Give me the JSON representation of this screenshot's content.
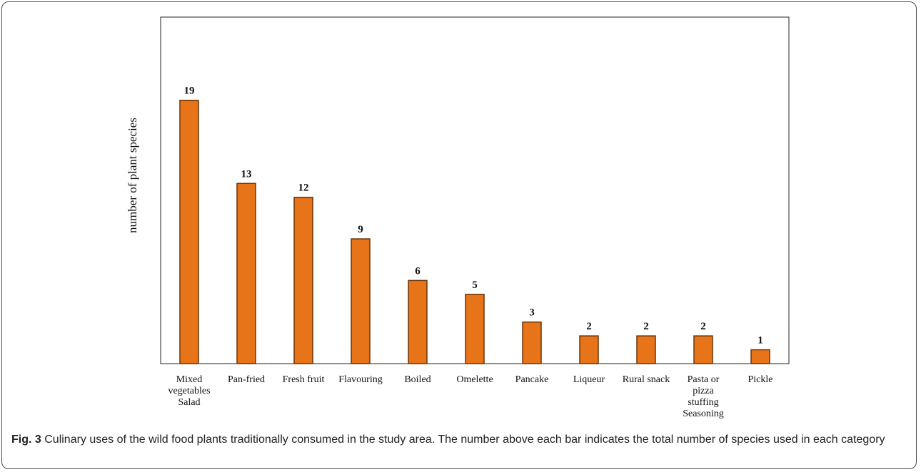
{
  "chart_data": {
    "type": "bar",
    "categories": [
      "Mixed vegetables Salad",
      "Pan-fried",
      "Fresh fruit",
      "Flavouring",
      "Boiled",
      "Omelette",
      "Pancake",
      "Liqueur",
      "Rural snack",
      "Pasta or pizza stuffing Seasoning",
      "Pickle"
    ],
    "category_lines": [
      [
        "Mixed",
        "vegetables",
        "Salad"
      ],
      [
        "Pan-fried"
      ],
      [
        "Fresh fruit"
      ],
      [
        "Flavouring"
      ],
      [
        "Boiled"
      ],
      [
        "Omelette"
      ],
      [
        "Pancake"
      ],
      [
        "Liqueur"
      ],
      [
        "Rural snack"
      ],
      [
        "Pasta or",
        "pizza",
        "stuffing",
        "Seasoning"
      ],
      [
        "Pickle"
      ]
    ],
    "values": [
      19,
      13,
      12,
      9,
      6,
      5,
      3,
      2,
      2,
      2,
      1
    ],
    "ylabel": "number of plant species",
    "xlabel": "",
    "ylim": [
      0,
      25
    ],
    "bar_color": "#e8741a",
    "bar_edge_color": "#6b3408",
    "grid": false,
    "data_labels": true
  },
  "caption": {
    "label": "Fig. 3",
    "text": "Culinary uses of the wild food plants traditionally consumed in the study area. The number above each bar indicates the total number of species used in each category"
  }
}
